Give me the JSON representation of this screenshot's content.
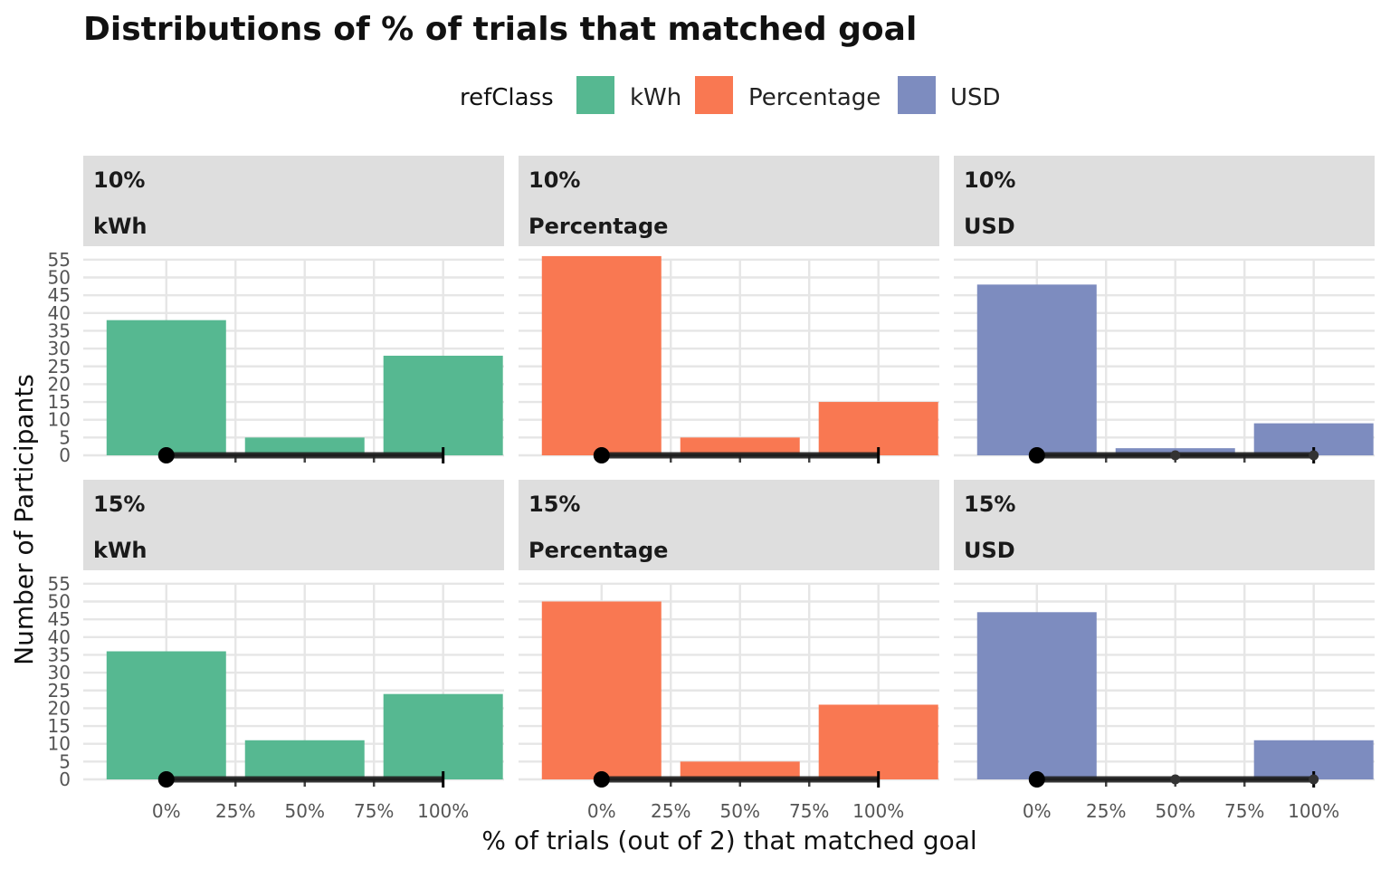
{
  "title": "Distributions of % of trials that matched goal",
  "legend": {
    "title": "refClass",
    "items": [
      {
        "label": "kWh",
        "color": "#56b891"
      },
      {
        "label": "Percentage",
        "color": "#f97852"
      },
      {
        "label": "USD",
        "color": "#7d8cbf"
      }
    ]
  },
  "chart_data": {
    "type": "bar",
    "title": "Distributions of % of trials that matched goal",
    "xlabel": "% of trials (out of 2) that matched goal",
    "ylabel": "Number of Participants",
    "categories": [
      "0%",
      "50%",
      "100%"
    ],
    "x_values": [
      0,
      50,
      100
    ],
    "x_ticks": [
      "0%",
      "25%",
      "50%",
      "75%",
      "100%"
    ],
    "x_tick_values": [
      0,
      25,
      50,
      75,
      100
    ],
    "xlim": [
      -30,
      122
    ],
    "y_ticks": [
      "0",
      "5",
      "10",
      "15",
      "20",
      "25",
      "30",
      "35",
      "40",
      "45",
      "50",
      "55"
    ],
    "ylim": [
      0,
      56
    ],
    "grid": true,
    "legend_position": "top",
    "panels": [
      {
        "row": "10%",
        "col": "kWh",
        "color": "#56b891",
        "values": [
          38,
          5,
          28
        ],
        "interval": {
          "point": 0,
          "lo": 0,
          "hi": 100,
          "dots": []
        }
      },
      {
        "row": "10%",
        "col": "Percentage",
        "color": "#f97852",
        "values": [
          56,
          5,
          15
        ],
        "interval": {
          "point": 0,
          "lo": 0,
          "hi": 100,
          "dots": []
        }
      },
      {
        "row": "10%",
        "col": "USD",
        "color": "#7d8cbf",
        "values": [
          48,
          2,
          9
        ],
        "interval": {
          "point": 0,
          "lo": 0,
          "hi": 100,
          "dots": [
            50,
            100
          ]
        }
      },
      {
        "row": "15%",
        "col": "kWh",
        "color": "#56b891",
        "values": [
          36,
          11,
          24
        ],
        "interval": {
          "point": 0,
          "lo": 0,
          "hi": 100,
          "dots": []
        }
      },
      {
        "row": "15%",
        "col": "Percentage",
        "color": "#f97852",
        "values": [
          50,
          5,
          21
        ],
        "interval": {
          "point": 0,
          "lo": 0,
          "hi": 100,
          "dots": []
        }
      },
      {
        "row": "15%",
        "col": "USD",
        "color": "#7d8cbf",
        "values": [
          47,
          0,
          11
        ],
        "interval": {
          "point": 0,
          "lo": 0,
          "hi": 100,
          "dots": [
            50,
            100
          ]
        }
      }
    ]
  }
}
